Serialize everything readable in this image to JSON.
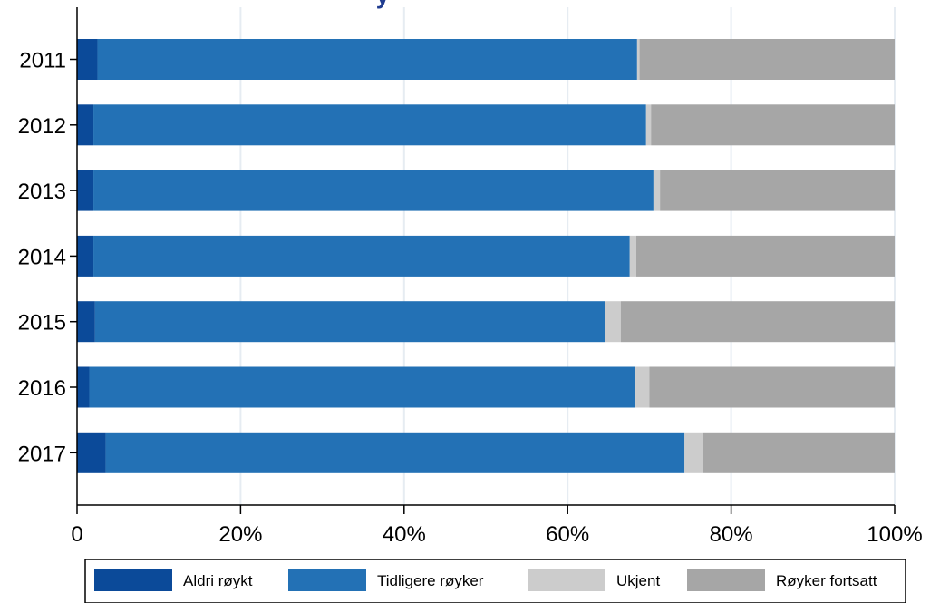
{
  "chart_data": {
    "type": "bar",
    "orientation": "horizontal",
    "stacked": true,
    "title_fragment": "y",
    "categories": [
      "2011",
      "2012",
      "2013",
      "2014",
      "2015",
      "2016",
      "2017"
    ],
    "series": [
      {
        "name": "Aldri røykt",
        "color": "#0b4a99",
        "values": [
          2.5,
          2.0,
          2.0,
          2.0,
          2.2,
          1.5,
          3.5
        ]
      },
      {
        "name": "Tidligere røyker",
        "color": "#2371b5",
        "values": [
          66.0,
          67.6,
          68.5,
          65.6,
          62.4,
          66.8,
          70.8
        ]
      },
      {
        "name": "Ukjent",
        "color": "#cccccc",
        "values": [
          0.3,
          0.6,
          0.8,
          0.8,
          1.9,
          1.7,
          2.3
        ]
      },
      {
        "name": "Røyker fortsatt",
        "color": "#a6a6a6",
        "values": [
          31.2,
          29.8,
          28.7,
          31.6,
          33.5,
          30.0,
          23.4
        ]
      }
    ],
    "xlim": [
      0,
      100
    ],
    "xticks": [
      0,
      20,
      40,
      60,
      80,
      100
    ],
    "xtick_labels": [
      "0",
      "20%",
      "40%",
      "60%",
      "80%",
      "100%"
    ],
    "grid": "vertical",
    "legend_position": "bottom"
  }
}
